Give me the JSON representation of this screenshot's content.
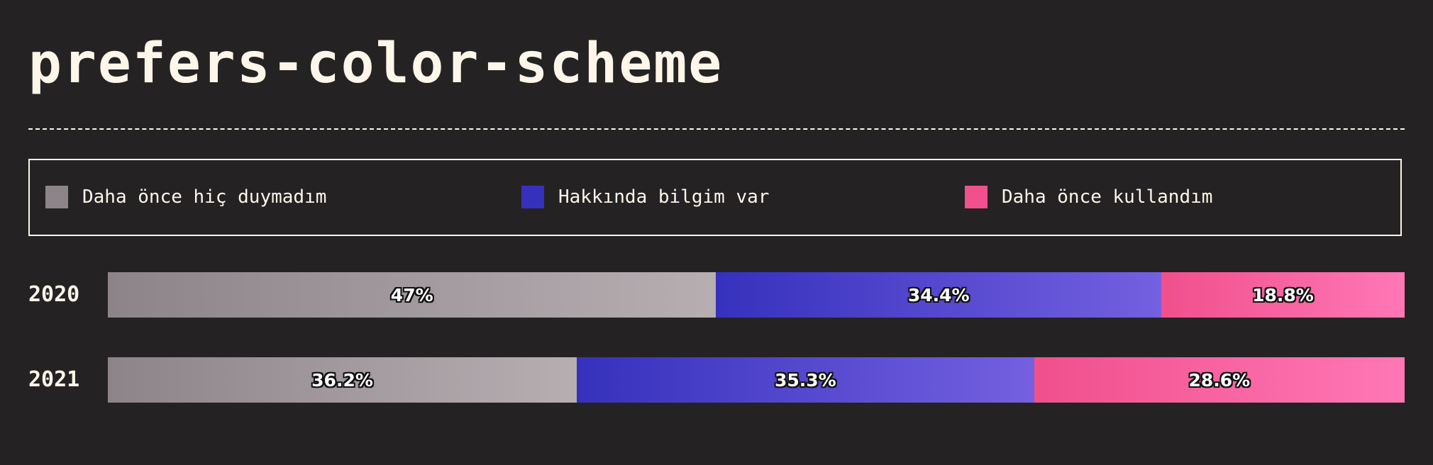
{
  "title": "prefers-color-scheme",
  "chart_data": {
    "type": "bar",
    "orientation": "horizontal",
    "stacked": true,
    "normalized": true,
    "categories": [
      "2020",
      "2021"
    ],
    "series": [
      {
        "name": "Daha önce hiç duymadım",
        "values": [
          47,
          36.2
        ],
        "labels": [
          "47%",
          "36.2%"
        ],
        "color_start": "#8c8489",
        "color_end": "#b6aeb1"
      },
      {
        "name": "Hakkında bilgim var",
        "values": [
          34.4,
          35.3
        ],
        "labels": [
          "34.4%",
          "35.3%"
        ],
        "color_start": "#3631bd",
        "color_end": "#7460e0"
      },
      {
        "name": "Daha önce kullandım",
        "values": [
          18.8,
          28.6
        ],
        "labels": [
          "18.8%",
          "28.6%"
        ],
        "color_start": "#f0508c",
        "color_end": "#ff77b6"
      }
    ],
    "legend_position": "top",
    "grid": false
  }
}
